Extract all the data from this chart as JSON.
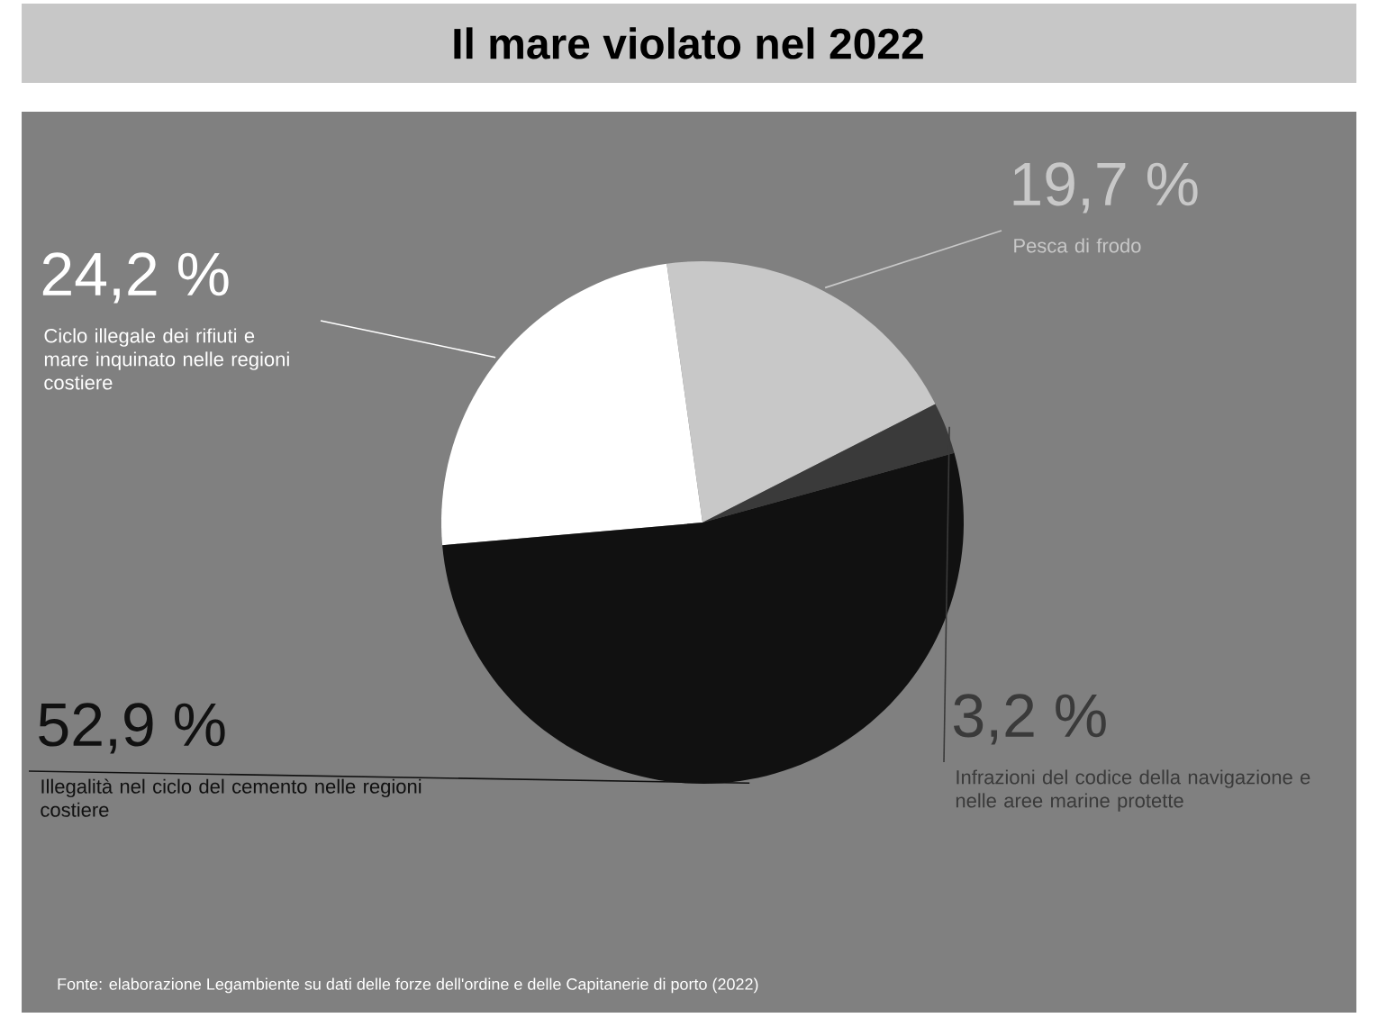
{
  "chart_data": {
    "type": "pie",
    "title": "Il mare violato nel 2022",
    "categories": [
      "Ciclo illegale dei rifiuti e mare inquinato nelle regioni costiere",
      "Pesca di frodo",
      "Infrazioni del codice della navigazione e nelle aree marine protette",
      "Illegalità nel ciclo del cemento nelle regioni costiere"
    ],
    "values": [
      24.2,
      19.7,
      3.2,
      52.9
    ],
    "value_labels": [
      "24,2 %",
      "19,7 %",
      "3,2 %",
      "52,9 %"
    ],
    "colors": [
      "#ffffff",
      "#c8c8c8",
      "#3a3a3a",
      "#111111"
    ],
    "annotations": [
      "Fonte: elaborazione Legambiente su dati delle forze dell'ordine e delle Capitanerie di porto (2022)"
    ]
  }
}
